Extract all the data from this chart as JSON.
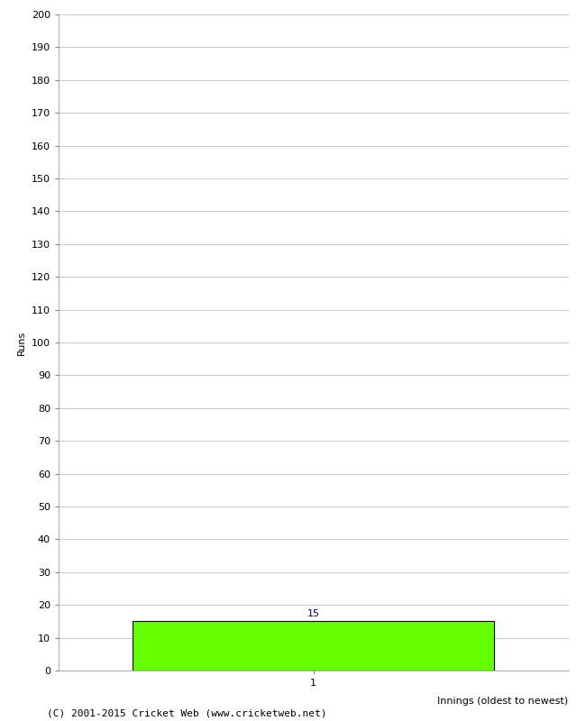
{
  "bar_values": [
    15
  ],
  "bar_positions": [
    1
  ],
  "bar_color": "#66ff00",
  "bar_edge_color": "#000000",
  "bar_width": 0.85,
  "ylim": [
    0,
    200
  ],
  "ytick_step": 10,
  "ylabel": "Runs",
  "xlabel": "Innings (oldest to newest)",
  "annotation_value": "15",
  "annotation_color": "#000080",
  "annotation_fontsize": 8,
  "xtick_labels": [
    "1"
  ],
  "xtick_positions": [
    1
  ],
  "copyright_text": "(C) 2001-2015 Cricket Web (www.cricketweb.net)",
  "copyright_fontsize": 8,
  "copyright_color": "#000000",
  "background_color": "#ffffff",
  "grid_color": "#cccccc",
  "axis_label_fontsize": 8,
  "tick_fontsize": 8,
  "xlabel_fontsize": 8
}
